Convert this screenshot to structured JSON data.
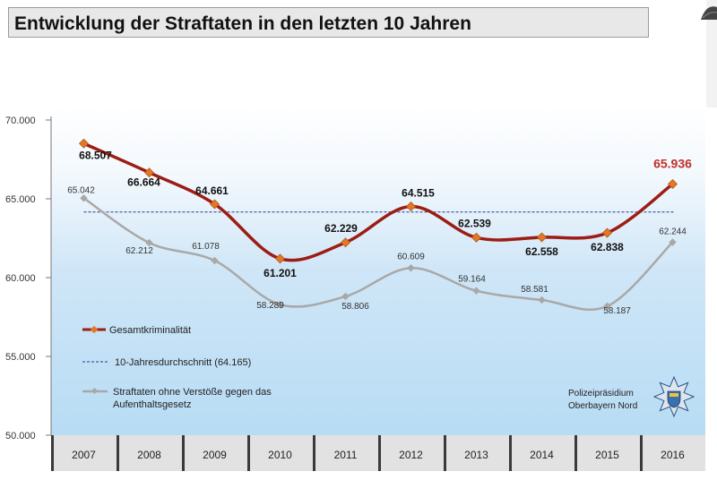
{
  "title": "Entwicklung der Straftaten in den letzten 10 Jahren",
  "logo": {
    "line1": "Polizeipräsidium",
    "line2": "Oberbayern Nord",
    "icon": "bavarian-police-star-icon"
  },
  "colors": {
    "total": "#9c1d14",
    "marker": "#e07a2a",
    "other": "#a8a8a8",
    "avg": "#2b3a8a",
    "highlight": "#c0302a"
  },
  "chart_data": {
    "type": "line",
    "categories": [
      "2007",
      "2008",
      "2009",
      "2010",
      "2011",
      "2012",
      "2013",
      "2014",
      "2015",
      "2016"
    ],
    "ylim": [
      50000,
      70000
    ],
    "y_ticks": [
      {
        "value": 50000,
        "label": "50.000"
      },
      {
        "value": 55000,
        "label": "55.000"
      },
      {
        "value": 60000,
        "label": "60.000"
      },
      {
        "value": 65000,
        "label": "65.000"
      },
      {
        "value": 70000,
        "label": "70.000"
      }
    ],
    "series": [
      {
        "name": "Gesamtkriminalität",
        "values": [
          68507,
          66664,
          64661,
          61201,
          62229,
          64515,
          62539,
          62558,
          62838,
          65936
        ],
        "labels": [
          "68.507",
          "66.664",
          "64.661",
          "61.201",
          "62.229",
          "64.515",
          "62.539",
          "62.558",
          "62.838",
          "65.936"
        ]
      },
      {
        "name": "Straftaten ohne Verstöße gegen das Aufenthaltsgesetz",
        "values": [
          65042,
          62212,
          61078,
          58289,
          58806,
          60609,
          59164,
          58581,
          58187,
          62244
        ],
        "labels": [
          "65.042",
          "62.212",
          "61.078",
          "58.289",
          "58.806",
          "60.609",
          "59.164",
          "58.581",
          "58.187",
          "62.244"
        ]
      }
    ],
    "reference_line": {
      "name": "10-Jahresdurchschnitt (64.165)",
      "value": 64165
    },
    "legend": [
      {
        "label": "Gesamtkriminalität"
      },
      {
        "label": "10-Jahresdurchschnitt (64.165)"
      },
      {
        "label": "Straftaten ohne Verstöße gegen das"
      },
      {
        "label": "Aufenthaltsgesetz"
      }
    ]
  }
}
